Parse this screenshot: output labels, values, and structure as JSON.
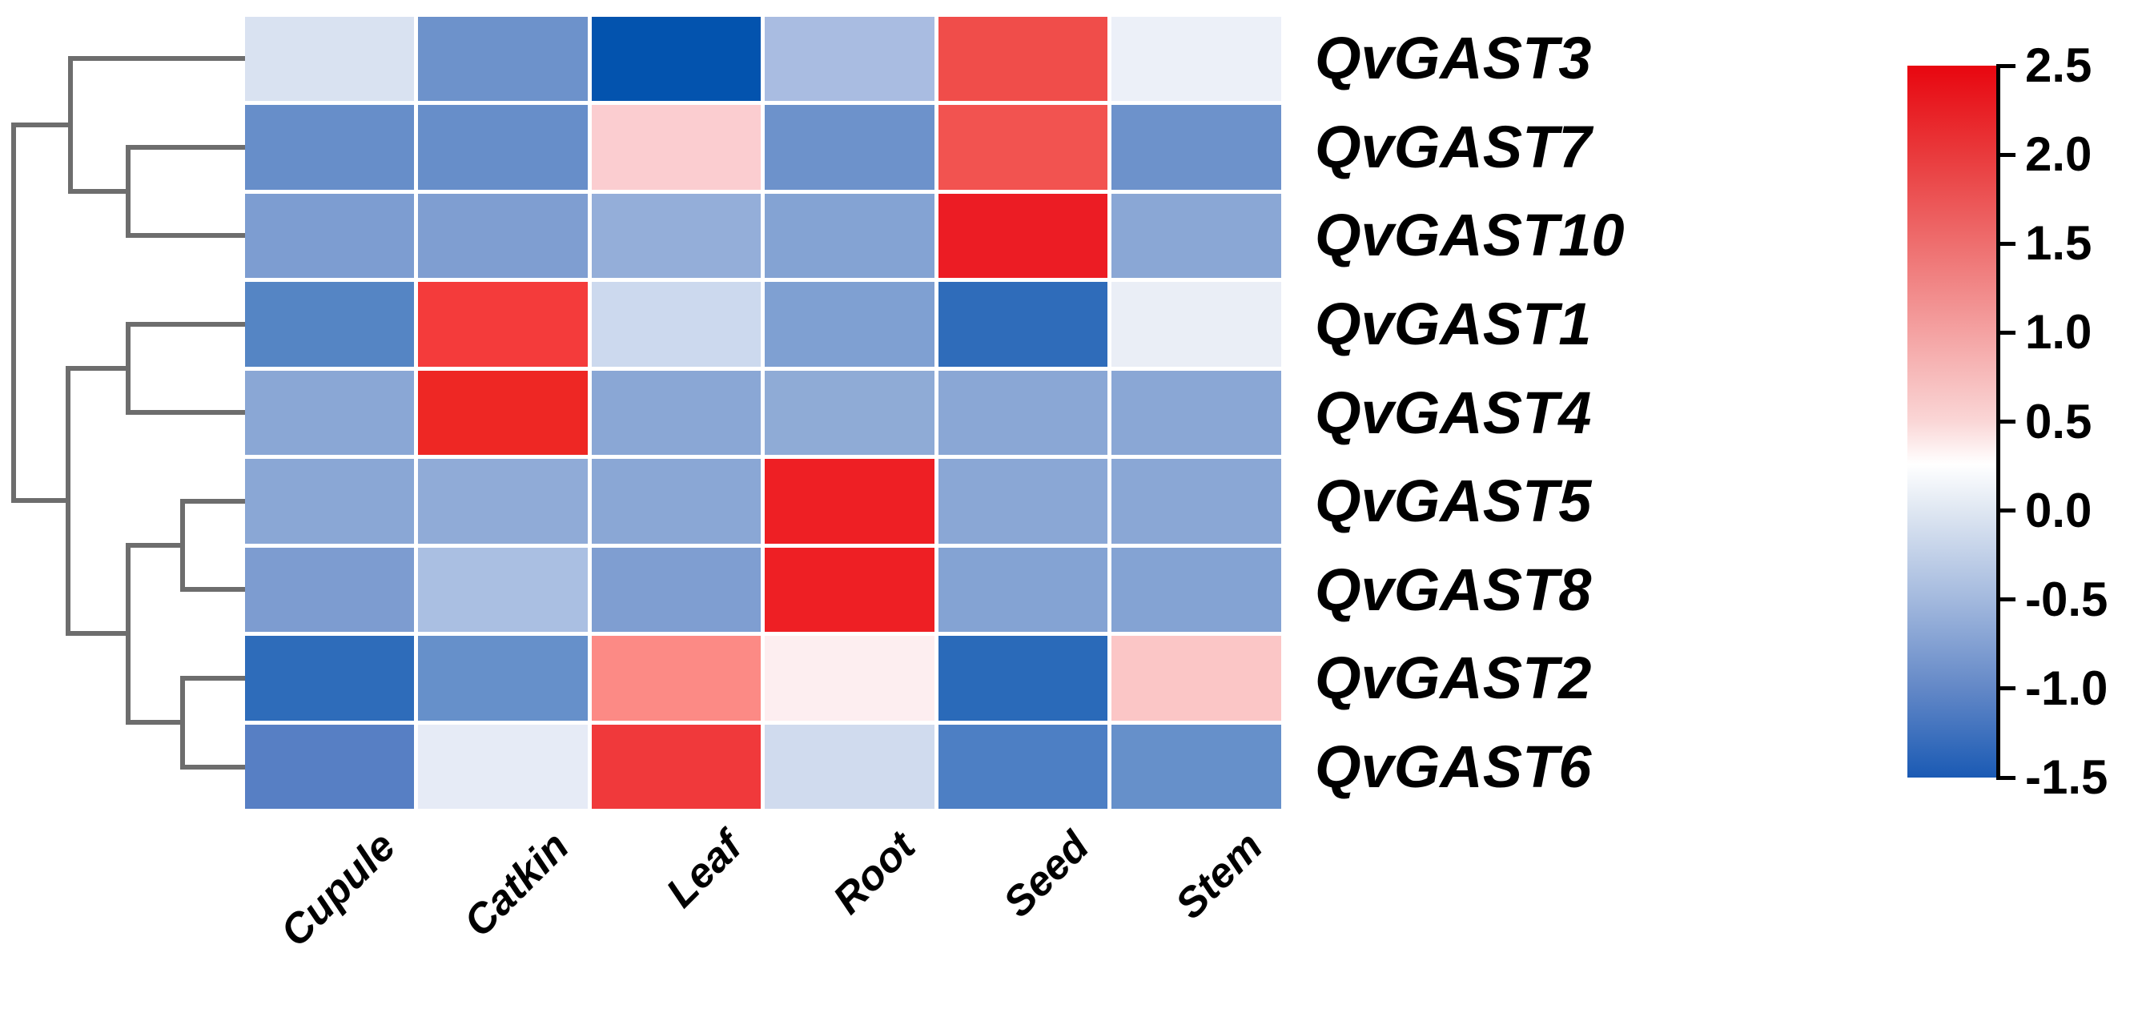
{
  "chart_data": {
    "type": "heatmap",
    "rows": [
      "QvGAST3",
      "QvGAST7",
      "QvGAST10",
      "QvGAST1",
      "QvGAST4",
      "QvGAST5",
      "QvGAST8",
      "QvGAST2",
      "QvGAST6"
    ],
    "columns": [
      "Cupule",
      "Catkin",
      "Leaf",
      "Root",
      "Seed",
      "Stem"
    ],
    "values": [
      [
        -0.1,
        -0.8,
        -1.5,
        -0.45,
        2.0,
        0.1
      ],
      [
        -0.85,
        -0.85,
        0.9,
        -0.8,
        2.0,
        -0.8
      ],
      [
        -0.7,
        -0.7,
        -0.6,
        -0.65,
        2.5,
        -0.65
      ],
      [
        -0.95,
        2.2,
        -0.2,
        -0.7,
        -1.2,
        0.1
      ],
      [
        -0.65,
        2.4,
        -0.65,
        -0.6,
        -0.65,
        -0.65
      ],
      [
        -0.65,
        -0.6,
        -0.65,
        2.45,
        -0.65,
        -0.65
      ],
      [
        -0.7,
        -0.45,
        -0.7,
        2.45,
        -0.67,
        -0.67
      ],
      [
        -1.2,
        -0.82,
        1.5,
        0.55,
        -1.25,
        1.0
      ],
      [
        -1.0,
        0.05,
        2.2,
        -0.2,
        -1.05,
        -0.82
      ]
    ],
    "cell_colors": [
      [
        "#d9e2f1",
        "#6d92cb",
        "#0353ae",
        "#a9bce1",
        "#f04d4a",
        "#ecf0f8"
      ],
      [
        "#678ec9",
        "#678ec9",
        "#fbcdd0",
        "#6d92cb",
        "#f25350",
        "#6d92cb"
      ],
      [
        "#7d9dd1",
        "#7f9ed1",
        "#94aed9",
        "#84a3d3",
        "#ec1c24",
        "#8aa7d5"
      ],
      [
        "#5585c4",
        "#f43b3b",
        "#ccd9ee",
        "#7fa0d2",
        "#2f6cba",
        "#eaeef6"
      ],
      [
        "#8aa7d5",
        "#ee2724",
        "#8aa7d5",
        "#8fabd6",
        "#8aa7d5",
        "#8aa7d5"
      ],
      [
        "#8aa7d5",
        "#90abd7",
        "#8aa7d5",
        "#ee1f24",
        "#8aa7d5",
        "#8aa7d5"
      ],
      [
        "#7d9cd0",
        "#aabfe2",
        "#7f9ed1",
        "#ee1f24",
        "#84a3d3",
        "#84a3d3"
      ],
      [
        "#2e6cba",
        "#6690ca",
        "#fc8a85",
        "#fdeef0",
        "#2a6ab9",
        "#fbc6c6"
      ],
      [
        "#577fc4",
        "#e6ebf6",
        "#f0393b",
        "#d0dbee",
        "#4d7fc4",
        "#6690ca"
      ]
    ],
    "colorbar": {
      "min": -1.5,
      "max": 2.5,
      "tick_labels": [
        "2.5",
        "2.0",
        "1.5",
        "1.0",
        "0.5",
        "0.0",
        "-0.5",
        "-1.0",
        "-1.5"
      ],
      "position": "right",
      "gradient": [
        {
          "pos": 0.0,
          "color": "#e8060f"
        },
        {
          "pos": 0.125,
          "color": "#e93a3c"
        },
        {
          "pos": 0.25,
          "color": "#ee6e6e"
        },
        {
          "pos": 0.375,
          "color": "#f4a2a2"
        },
        {
          "pos": 0.5,
          "color": "#fad6d6"
        },
        {
          "pos": 0.56,
          "color": "#ffffff"
        },
        {
          "pos": 0.625,
          "color": "#dfe7f2"
        },
        {
          "pos": 0.75,
          "color": "#a3b9de"
        },
        {
          "pos": 0.875,
          "color": "#6388c7"
        },
        {
          "pos": 1.0,
          "color": "#1a5ab4"
        }
      ]
    },
    "dendrogram": {
      "line_color": "#6d6d6d",
      "topology": "((QvGAST3,(QvGAST7,QvGAST10)),((QvGAST1,QvGAST4),((QvGAST5,QvGAST8),(QvGAST2,QvGAST6))))",
      "segments": [
        [
          88,
          73,
          303,
          73
        ],
        [
          160,
          184,
          303,
          184
        ],
        [
          160,
          294,
          303,
          294
        ],
        [
          160,
          184,
          160,
          294
        ],
        [
          88,
          239,
          160,
          239
        ],
        [
          88,
          73,
          88,
          239
        ],
        [
          17,
          156,
          88,
          156
        ],
        [
          160,
          405,
          303,
          405
        ],
        [
          160,
          515,
          303,
          515
        ],
        [
          160,
          405,
          160,
          515
        ],
        [
          85,
          460,
          160,
          460
        ],
        [
          228,
          626,
          303,
          626
        ],
        [
          228,
          736,
          303,
          736
        ],
        [
          228,
          626,
          228,
          736
        ],
        [
          160,
          681,
          228,
          681
        ],
        [
          228,
          847,
          303,
          847
        ],
        [
          228,
          958,
          303,
          958
        ],
        [
          228,
          847,
          228,
          958
        ],
        [
          160,
          902,
          228,
          902
        ],
        [
          160,
          681,
          160,
          902
        ],
        [
          85,
          791,
          160,
          791
        ],
        [
          85,
          460,
          85,
          791
        ],
        [
          17,
          625,
          85,
          625
        ],
        [
          17,
          156,
          17,
          625
        ]
      ]
    },
    "grid": false
  }
}
